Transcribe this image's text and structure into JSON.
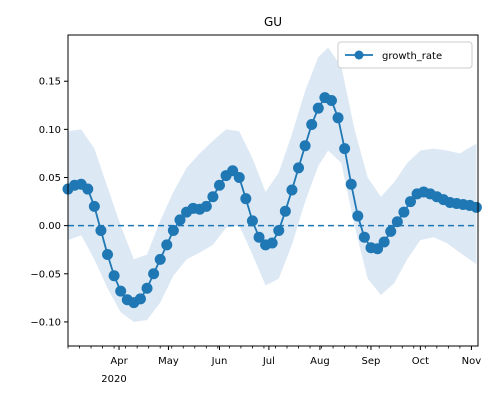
{
  "chart_data": {
    "type": "line",
    "title": "GU",
    "xlabel": "",
    "ylabel": "",
    "x_range": [
      "2020-03-01",
      "2020-11-05"
    ],
    "ylim": [
      -0.125,
      0.198
    ],
    "y_ticks": [
      {
        "value": -0.1,
        "label": "−0.10"
      },
      {
        "value": -0.05,
        "label": "−0.05"
      },
      {
        "value": 0.0,
        "label": "0.00"
      },
      {
        "value": 0.05,
        "label": "0.05"
      },
      {
        "value": 0.1,
        "label": "0.10"
      },
      {
        "value": 0.15,
        "label": "0.15"
      }
    ],
    "x_ticks": [
      {
        "date": "2020-04-01",
        "label": "Apr"
      },
      {
        "date": "2020-05-01",
        "label": "May"
      },
      {
        "date": "2020-06-01",
        "label": "Jun"
      },
      {
        "date": "2020-07-01",
        "label": "Jul"
      },
      {
        "date": "2020-08-01",
        "label": "Aug"
      },
      {
        "date": "2020-09-01",
        "label": "Sep"
      },
      {
        "date": "2020-10-01",
        "label": "Oct"
      },
      {
        "date": "2020-11-01",
        "label": "Nov"
      }
    ],
    "year_label": "2020",
    "reference_line": {
      "y": 0,
      "style": "dashed",
      "color": "#1f77b4"
    },
    "legend": {
      "position": "top-right",
      "entries": [
        "growth_rate"
      ]
    },
    "colors": {
      "line": "#1f77b4",
      "band": "#dce8f4"
    },
    "series": [
      {
        "name": "growth_rate",
        "points": [
          [
            "2020-03-01",
            0.038
          ],
          [
            "2020-03-05",
            0.042
          ],
          [
            "2020-03-09",
            0.043
          ],
          [
            "2020-03-13",
            0.038
          ],
          [
            "2020-03-17",
            0.02
          ],
          [
            "2020-03-21",
            -0.005
          ],
          [
            "2020-03-25",
            -0.03
          ],
          [
            "2020-03-29",
            -0.052
          ],
          [
            "2020-04-02",
            -0.068
          ],
          [
            "2020-04-06",
            -0.077
          ],
          [
            "2020-04-10",
            -0.08
          ],
          [
            "2020-04-14",
            -0.076
          ],
          [
            "2020-04-18",
            -0.065
          ],
          [
            "2020-04-22",
            -0.05
          ],
          [
            "2020-04-26",
            -0.035
          ],
          [
            "2020-04-30",
            -0.02
          ],
          [
            "2020-05-04",
            -0.005
          ],
          [
            "2020-05-08",
            0.006
          ],
          [
            "2020-05-12",
            0.014
          ],
          [
            "2020-05-16",
            0.018
          ],
          [
            "2020-05-20",
            0.017
          ],
          [
            "2020-05-24",
            0.02
          ],
          [
            "2020-05-28",
            0.03
          ],
          [
            "2020-06-01",
            0.042
          ],
          [
            "2020-06-05",
            0.052
          ],
          [
            "2020-06-09",
            0.057
          ],
          [
            "2020-06-13",
            0.05
          ],
          [
            "2020-06-17",
            0.028
          ],
          [
            "2020-06-21",
            0.005
          ],
          [
            "2020-06-25",
            -0.012
          ],
          [
            "2020-06-29",
            -0.02
          ],
          [
            "2020-07-03",
            -0.018
          ],
          [
            "2020-07-07",
            -0.005
          ],
          [
            "2020-07-11",
            0.015
          ],
          [
            "2020-07-15",
            0.037
          ],
          [
            "2020-07-19",
            0.06
          ],
          [
            "2020-07-23",
            0.083
          ],
          [
            "2020-07-27",
            0.105
          ],
          [
            "2020-07-31",
            0.122
          ],
          [
            "2020-08-04",
            0.133
          ],
          [
            "2020-08-08",
            0.13
          ],
          [
            "2020-08-12",
            0.112
          ],
          [
            "2020-08-16",
            0.08
          ],
          [
            "2020-08-20",
            0.043
          ],
          [
            "2020-08-24",
            0.01
          ],
          [
            "2020-08-28",
            -0.012
          ],
          [
            "2020-09-01",
            -0.023
          ],
          [
            "2020-09-05",
            -0.024
          ],
          [
            "2020-09-09",
            -0.017
          ],
          [
            "2020-09-13",
            -0.006
          ],
          [
            "2020-09-17",
            0.004
          ],
          [
            "2020-09-21",
            0.014
          ],
          [
            "2020-09-25",
            0.025
          ],
          [
            "2020-09-29",
            0.033
          ],
          [
            "2020-10-03",
            0.035
          ],
          [
            "2020-10-07",
            0.033
          ],
          [
            "2020-10-11",
            0.03
          ],
          [
            "2020-10-15",
            0.027
          ],
          [
            "2020-10-19",
            0.024
          ],
          [
            "2020-10-23",
            0.023
          ],
          [
            "2020-10-27",
            0.022
          ],
          [
            "2020-10-31",
            0.021
          ],
          [
            "2020-11-04",
            0.019
          ]
        ],
        "band_upper": [
          [
            "2020-03-01",
            0.098
          ],
          [
            "2020-03-09",
            0.1
          ],
          [
            "2020-03-17",
            0.08
          ],
          [
            "2020-03-25",
            0.04
          ],
          [
            "2020-04-02",
            0.0
          ],
          [
            "2020-04-10",
            -0.035
          ],
          [
            "2020-04-18",
            -0.03
          ],
          [
            "2020-04-26",
            0.005
          ],
          [
            "2020-05-04",
            0.035
          ],
          [
            "2020-05-12",
            0.06
          ],
          [
            "2020-05-20",
            0.075
          ],
          [
            "2020-05-28",
            0.088
          ],
          [
            "2020-06-05",
            0.1
          ],
          [
            "2020-06-13",
            0.098
          ],
          [
            "2020-06-21",
            0.07
          ],
          [
            "2020-06-29",
            0.035
          ],
          [
            "2020-07-07",
            0.055
          ],
          [
            "2020-07-15",
            0.095
          ],
          [
            "2020-07-23",
            0.14
          ],
          [
            "2020-07-31",
            0.175
          ],
          [
            "2020-08-06",
            0.185
          ],
          [
            "2020-08-14",
            0.165
          ],
          [
            "2020-08-22",
            0.1
          ],
          [
            "2020-08-30",
            0.05
          ],
          [
            "2020-09-07",
            0.03
          ],
          [
            "2020-09-15",
            0.045
          ],
          [
            "2020-09-23",
            0.065
          ],
          [
            "2020-10-01",
            0.078
          ],
          [
            "2020-10-09",
            0.08
          ],
          [
            "2020-10-17",
            0.078
          ],
          [
            "2020-10-25",
            0.075
          ],
          [
            "2020-11-04",
            0.085
          ]
        ],
        "band_lower": [
          [
            "2020-03-01",
            -0.015
          ],
          [
            "2020-03-09",
            -0.01
          ],
          [
            "2020-03-17",
            -0.035
          ],
          [
            "2020-03-25",
            -0.065
          ],
          [
            "2020-04-02",
            -0.09
          ],
          [
            "2020-04-10",
            -0.1
          ],
          [
            "2020-04-18",
            -0.098
          ],
          [
            "2020-04-26",
            -0.08
          ],
          [
            "2020-05-04",
            -0.052
          ],
          [
            "2020-05-12",
            -0.035
          ],
          [
            "2020-05-20",
            -0.028
          ],
          [
            "2020-05-28",
            -0.02
          ],
          [
            "2020-06-05",
            -0.002
          ],
          [
            "2020-06-13",
            0.0
          ],
          [
            "2020-06-21",
            -0.03
          ],
          [
            "2020-06-29",
            -0.062
          ],
          [
            "2020-07-07",
            -0.055
          ],
          [
            "2020-07-15",
            -0.02
          ],
          [
            "2020-07-23",
            0.025
          ],
          [
            "2020-07-31",
            0.062
          ],
          [
            "2020-08-06",
            0.078
          ],
          [
            "2020-08-14",
            0.065
          ],
          [
            "2020-08-22",
            0.0
          ],
          [
            "2020-08-30",
            -0.055
          ],
          [
            "2020-09-07",
            -0.072
          ],
          [
            "2020-09-15",
            -0.06
          ],
          [
            "2020-09-23",
            -0.035
          ],
          [
            "2020-10-01",
            -0.015
          ],
          [
            "2020-10-09",
            -0.012
          ],
          [
            "2020-10-17",
            -0.018
          ],
          [
            "2020-10-25",
            -0.028
          ],
          [
            "2020-11-04",
            -0.04
          ]
        ]
      }
    ]
  }
}
